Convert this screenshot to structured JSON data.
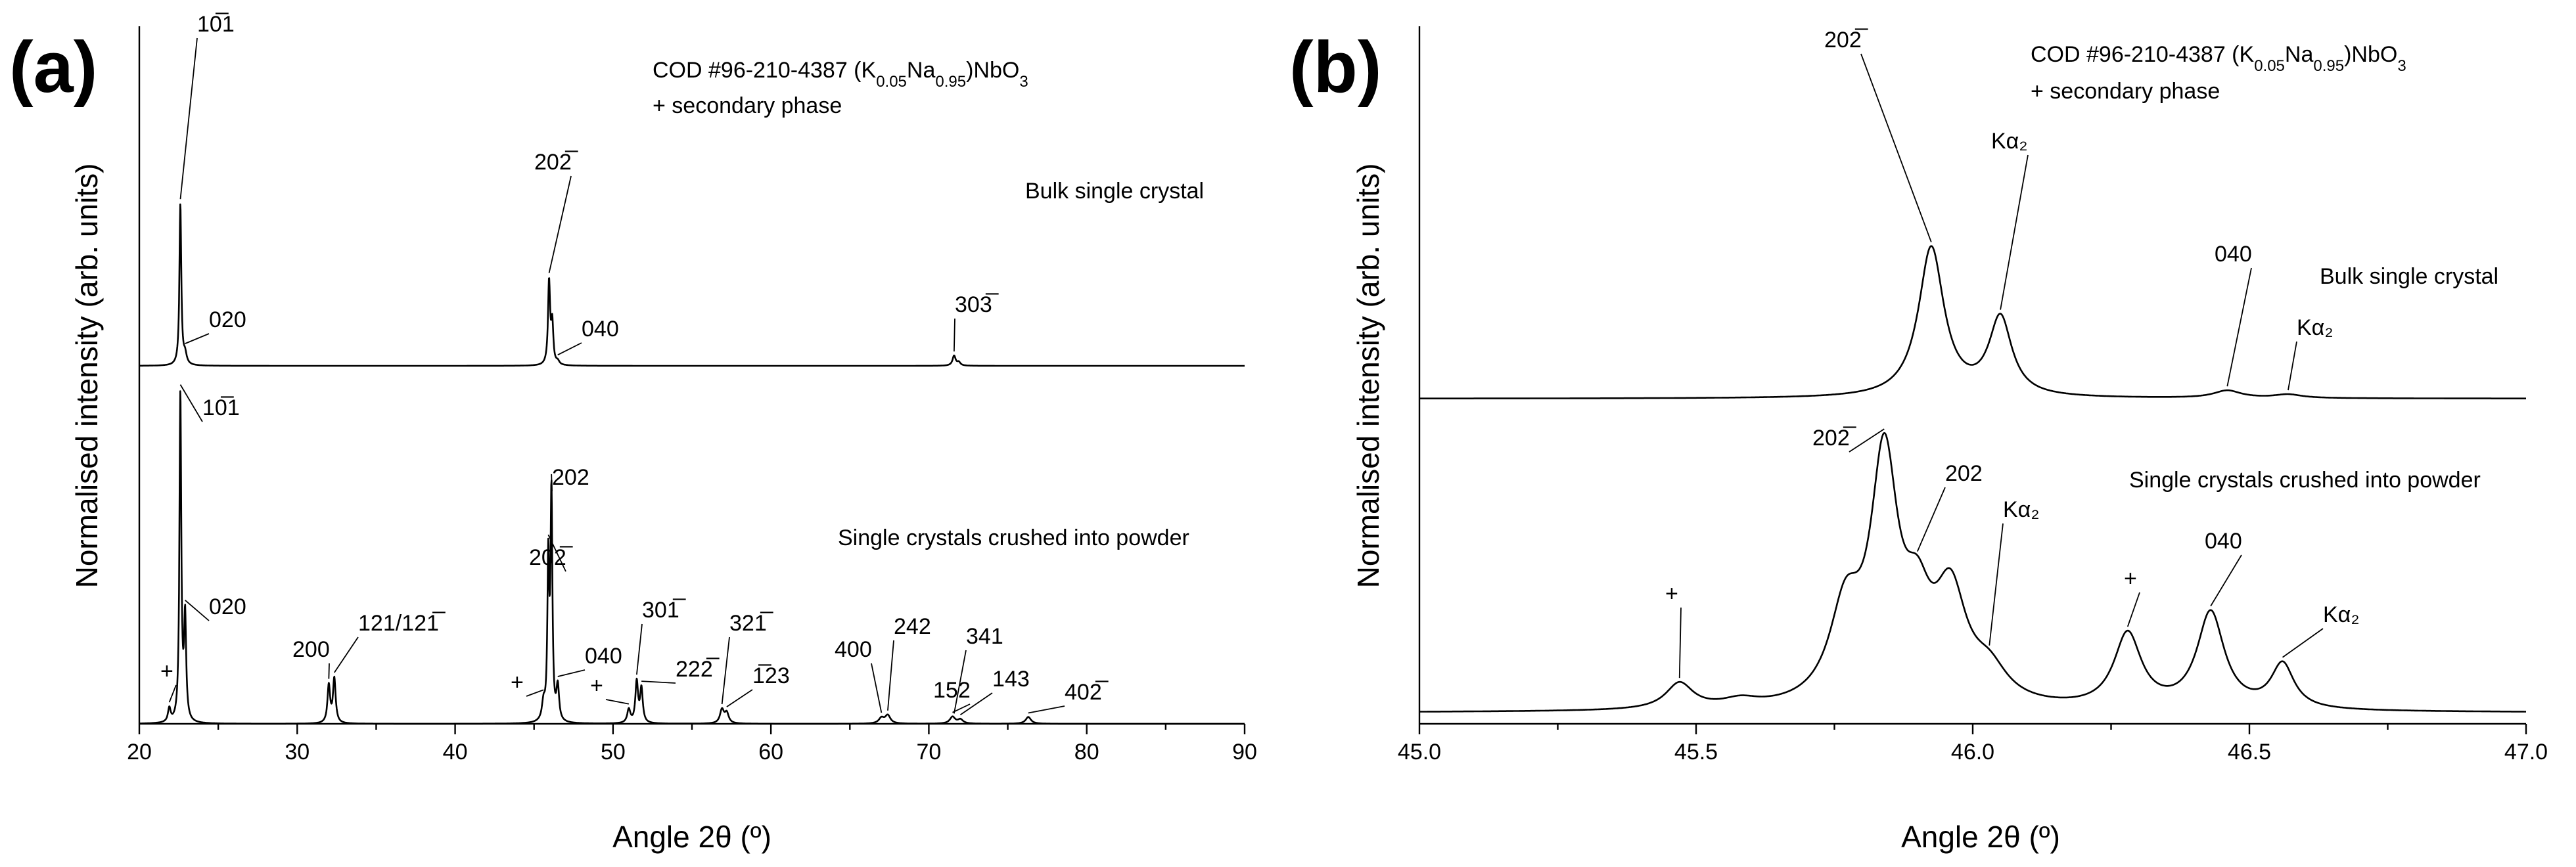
{
  "chart_data": [
    {
      "id": "a",
      "type": "line",
      "panel_label": "(a)",
      "xlabel": "Angle 2θ (º)",
      "ylabel": "Normalised intensity (arb. units)",
      "xlim": [
        20,
        90
      ],
      "xticks": [
        20,
        30,
        40,
        50,
        60,
        70,
        80,
        90
      ],
      "xtick_labels": [
        "20",
        "30",
        "40",
        "50",
        "60",
        "70",
        "80",
        "90"
      ],
      "legend": {
        "line1": {
          "prefix": "COD #96-210-4387 (K",
          "sub1": "0.05",
          "mid1": "Na",
          "sub2": "0.95",
          "mid2": ")NbO",
          "sub3": "3"
        },
        "line2": "+ secondary phase"
      },
      "series": [
        {
          "name": "Bulk single crystal",
          "label": "Bulk single crystal",
          "baseline": 0.515,
          "peaks": [
            [
              22.6,
              0.485,
              0.07
            ],
            [
              22.9,
              0.03,
              0.12
            ],
            [
              45.95,
              0.25,
              0.08
            ],
            [
              46.15,
              0.12,
              0.08
            ],
            [
              46.5,
              0.01,
              0.12
            ],
            [
              71.6,
              0.03,
              0.12
            ],
            [
              71.9,
              0.01,
              0.12
            ]
          ],
          "annotations": [
            {
              "text": "10̅1",
              "x": 22.6
            },
            {
              "text": "020",
              "x": 22.9
            },
            {
              "text": "202̅",
              "x": 45.95
            },
            {
              "text": "040",
              "x": 46.5
            },
            {
              "text": "303̅",
              "x": 71.6
            }
          ]
        },
        {
          "name": "Single crystals crushed into powder",
          "label": "Single crystals crushed into powder",
          "baseline": 0,
          "peaks": [
            [
              21.9,
              0.02,
              0.1
            ],
            [
              22.6,
              0.48,
              0.07
            ],
            [
              22.9,
              0.15,
              0.08
            ],
            [
              32.0,
              0.055,
              0.1
            ],
            [
              32.35,
              0.065,
              0.1
            ],
            [
              45.6,
              0.025,
              0.12
            ],
            [
              45.9,
              0.23,
              0.07
            ],
            [
              46.1,
              0.33,
              0.07
            ],
            [
              46.5,
              0.05,
              0.1
            ],
            [
              51.0,
              0.02,
              0.12
            ],
            [
              51.5,
              0.06,
              0.1
            ],
            [
              51.8,
              0.05,
              0.1
            ],
            [
              56.9,
              0.02,
              0.15
            ],
            [
              57.2,
              0.015,
              0.15
            ],
            [
              67.0,
              0.008,
              0.2
            ],
            [
              67.4,
              0.012,
              0.2
            ],
            [
              71.5,
              0.01,
              0.2
            ],
            [
              72.0,
              0.006,
              0.2
            ],
            [
              76.3,
              0.01,
              0.2
            ]
          ],
          "annotations": [
            {
              "text": "+",
              "x": 21.9
            },
            {
              "text": "10̅1",
              "x": 22.6
            },
            {
              "text": "020",
              "x": 22.9
            },
            {
              "text": "200",
              "x": 32.0
            },
            {
              "text": "121/121̅",
              "x": 32.35
            },
            {
              "text": "+",
              "x": 45.6
            },
            {
              "text": "202̅",
              "x": 45.9
            },
            {
              "text": "202",
              "x": 46.1
            },
            {
              "text": "040",
              "x": 46.5
            },
            {
              "text": "+",
              "x": 51.0
            },
            {
              "text": "301̅",
              "x": 51.5
            },
            {
              "text": "222̅",
              "x": 51.8
            },
            {
              "text": "321̅",
              "x": 56.9
            },
            {
              "text": "1̅23",
              "x": 57.2
            },
            {
              "text": "400",
              "x": 67.0
            },
            {
              "text": "242",
              "x": 67.4
            },
            {
              "text": "152",
              "x": 71.5
            },
            {
              "text": "341",
              "x": 71.6
            },
            {
              "text": "143",
              "x": 72.0
            },
            {
              "text": "402̅",
              "x": 76.3
            }
          ]
        }
      ]
    },
    {
      "id": "b",
      "type": "line",
      "panel_label": "(b)",
      "xlabel": "Angle 2θ (º)",
      "ylabel": "Normalised intensity (arb. units)",
      "xlim": [
        45.0,
        47.0
      ],
      "xticks": [
        45.0,
        45.5,
        46.0,
        46.5,
        47.0
      ],
      "xtick_labels": [
        "45.0",
        "45.5",
        "46.0",
        "46.5",
        "47.0"
      ],
      "legend": {
        "line1": {
          "prefix": "COD #96-210-4387 (K",
          "sub1": "0.05",
          "mid1": "Na",
          "sub2": "0.95",
          "mid2": ")NbO",
          "sub3": "3"
        },
        "line2": "+ secondary phase"
      },
      "series": [
        {
          "name": "Bulk single crystal",
          "label": "Bulk single crystal",
          "baseline": 0.45,
          "peaks": [
            [
              45.925,
              0.5,
              0.028
            ],
            [
              46.05,
              0.26,
              0.025
            ],
            [
              46.46,
              0.025,
              0.03
            ],
            [
              46.57,
              0.012,
              0.03
            ]
          ],
          "annotations": [
            {
              "text": "202̅",
              "x": 45.925
            },
            {
              "text": "Kα₂",
              "x": 46.05
            },
            {
              "text": "040",
              "x": 46.46
            },
            {
              "text": "Kα₂",
              "x": 46.57
            }
          ]
        },
        {
          "name": "Single crystals crushed into powder",
          "label": "Single crystals crushed into powder",
          "baseline": 0,
          "peaks": [
            [
              45.47,
              0.035,
              0.03
            ],
            [
              45.58,
              0.01,
              0.04
            ],
            [
              45.77,
              0.12,
              0.035
            ],
            [
              45.84,
              0.32,
              0.03
            ],
            [
              45.9,
              0.1,
              0.03
            ],
            [
              45.96,
              0.14,
              0.035
            ],
            [
              46.03,
              0.04,
              0.04
            ],
            [
              46.28,
              0.1,
              0.03
            ],
            [
              46.43,
              0.13,
              0.03
            ],
            [
              46.56,
              0.06,
              0.025
            ]
          ],
          "annotations": [
            {
              "text": "+",
              "x": 45.47
            },
            {
              "text": "202̅",
              "x": 45.84
            },
            {
              "text": "202",
              "x": 45.9
            },
            {
              "text": "Kα₂",
              "x": 46.03
            },
            {
              "text": "+",
              "x": 46.28
            },
            {
              "text": "040",
              "x": 46.43
            },
            {
              "text": "Kα₂",
              "x": 46.56
            }
          ]
        }
      ]
    }
  ]
}
